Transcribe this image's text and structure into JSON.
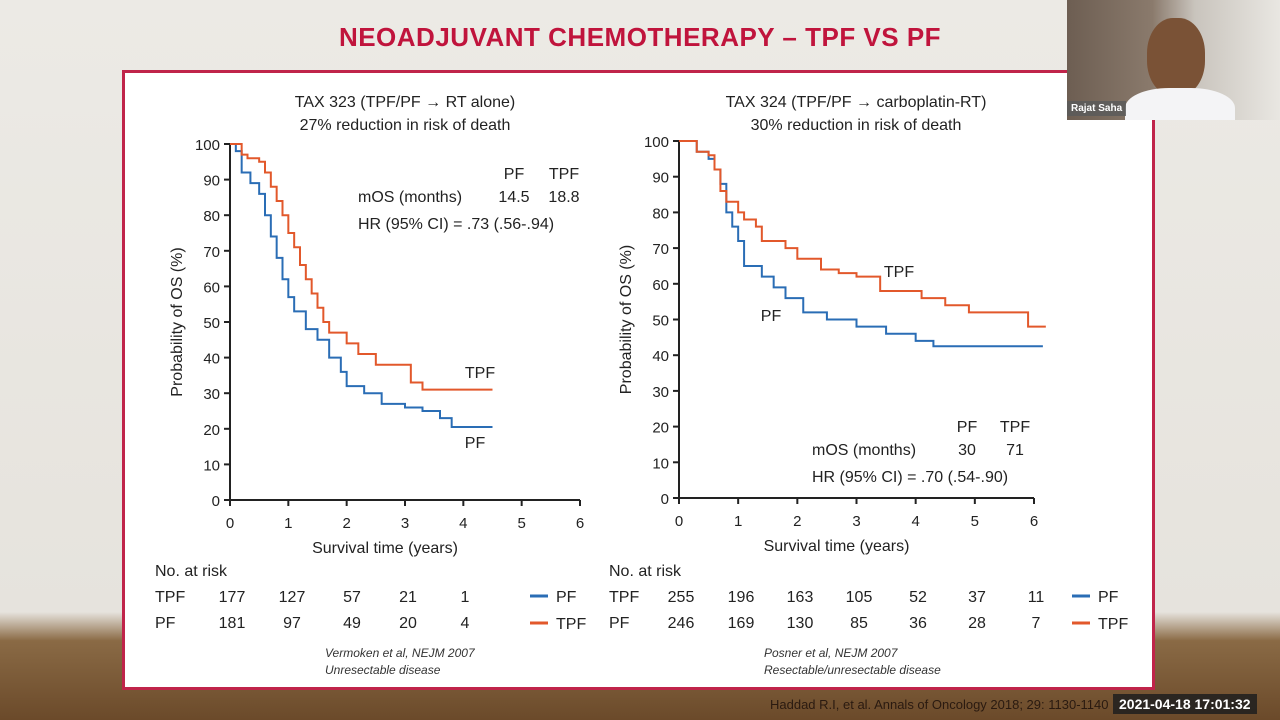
{
  "slide": {
    "title": "NEOADJUVANT CHEMOTHERAPY – TPF VS PF",
    "footer_citation": "Haddad R.I, et al. Annals of Oncology 2018; 29: 1130-1140"
  },
  "video": {
    "participant_name": "Rajat Saha",
    "timestamp": "2021-04-18 17:01:32"
  },
  "colors": {
    "PF": "#2a6db5",
    "TPF": "#e2582b",
    "accent": "#c0143c"
  },
  "chart_data": [
    {
      "type": "line",
      "title": "TAX 323 (TPF/PF → RT alone)",
      "subtitle": "27% reduction in risk of death",
      "xlabel": "Survival time (years)",
      "ylabel": "Probability of OS (%)",
      "xlim": [
        0,
        6
      ],
      "ylim": [
        0,
        100
      ],
      "xticks": [
        0,
        1,
        2,
        3,
        4,
        5,
        6
      ],
      "yticks": [
        0,
        10,
        20,
        30,
        40,
        50,
        60,
        70,
        80,
        90,
        100
      ],
      "grid": false,
      "stats": {
        "header": [
          "PF",
          "TPF"
        ],
        "mos_label": "mOS (months)",
        "mos": [
          "14.5",
          "18.8"
        ],
        "hr": "HR (95% CI) = .73 (.56-.94)"
      },
      "series": [
        {
          "name": "PF",
          "points": [
            [
              0,
              100
            ],
            [
              0.1,
              98
            ],
            [
              0.2,
              92
            ],
            [
              0.35,
              89
            ],
            [
              0.5,
              86
            ],
            [
              0.6,
              80
            ],
            [
              0.7,
              74
            ],
            [
              0.8,
              68
            ],
            [
              0.9,
              62
            ],
            [
              1.0,
              57
            ],
            [
              1.1,
              53
            ],
            [
              1.3,
              48
            ],
            [
              1.5,
              45
            ],
            [
              1.7,
              40
            ],
            [
              1.9,
              36
            ],
            [
              2.0,
              32
            ],
            [
              2.3,
              30
            ],
            [
              2.6,
              27
            ],
            [
              3.0,
              26
            ],
            [
              3.3,
              25
            ],
            [
              3.6,
              23
            ],
            [
              3.8,
              20.5
            ],
            [
              4.5,
              20.5
            ]
          ]
        },
        {
          "name": "TPF",
          "points": [
            [
              0,
              100
            ],
            [
              0.2,
              97
            ],
            [
              0.3,
              96
            ],
            [
              0.5,
              95
            ],
            [
              0.6,
              92
            ],
            [
              0.7,
              88
            ],
            [
              0.8,
              84
            ],
            [
              0.9,
              80
            ],
            [
              1.0,
              75
            ],
            [
              1.1,
              71
            ],
            [
              1.2,
              66
            ],
            [
              1.3,
              62
            ],
            [
              1.4,
              58
            ],
            [
              1.5,
              54
            ],
            [
              1.6,
              50
            ],
            [
              1.7,
              47
            ],
            [
              2.0,
              44
            ],
            [
              2.2,
              41
            ],
            [
              2.5,
              38
            ],
            [
              3.1,
              37
            ],
            [
              3.1,
              33
            ],
            [
              3.3,
              31
            ],
            [
              4.5,
              31
            ]
          ]
        }
      ],
      "risk_table": {
        "label": "No. at risk",
        "rows": [
          {
            "name": "TPF",
            "values": [
              "177",
              "127",
              "57",
              "21",
              "1"
            ]
          },
          {
            "name": "PF",
            "values": [
              "181",
              "97",
              "49",
              "20",
              "4"
            ]
          }
        ]
      },
      "legend": [
        {
          "name": "PF"
        },
        {
          "name": "TPF"
        }
      ],
      "source": [
        "Vermoken et al, NEJM 2007",
        "Unresectable disease"
      ]
    },
    {
      "type": "line",
      "title": "TAX 324 (TPF/PF → carboplatin-RT)",
      "subtitle": "30% reduction in risk of death",
      "xlabel": "Survival time (years)",
      "ylabel": "Probability of OS (%)",
      "xlim": [
        0,
        6
      ],
      "ylim": [
        0,
        100
      ],
      "xticks": [
        0,
        1,
        2,
        3,
        4,
        5,
        6
      ],
      "yticks": [
        0,
        10,
        20,
        30,
        40,
        50,
        60,
        70,
        80,
        90,
        100
      ],
      "grid": false,
      "stats": {
        "header": [
          "PF",
          "TPF"
        ],
        "mos_label": "mOS (months)",
        "mos": [
          "30",
          "71"
        ],
        "hr": "HR (95% CI) = .70 (.54-.90)"
      },
      "series": [
        {
          "name": "PF",
          "points": [
            [
              0,
              100
            ],
            [
              0.3,
              97
            ],
            [
              0.5,
              95
            ],
            [
              0.6,
              92
            ],
            [
              0.7,
              88
            ],
            [
              0.8,
              80
            ],
            [
              0.9,
              76
            ],
            [
              1.0,
              72
            ],
            [
              1.1,
              65
            ],
            [
              1.4,
              62
            ],
            [
              1.6,
              59
            ],
            [
              1.8,
              56
            ],
            [
              2.1,
              52
            ],
            [
              2.5,
              50
            ],
            [
              3.0,
              48
            ],
            [
              3.5,
              46
            ],
            [
              4.0,
              44
            ],
            [
              4.3,
              42.5
            ],
            [
              6.15,
              42.5
            ]
          ]
        },
        {
          "name": "TPF",
          "points": [
            [
              0,
              100
            ],
            [
              0.3,
              97
            ],
            [
              0.5,
              96
            ],
            [
              0.6,
              92
            ],
            [
              0.7,
              86
            ],
            [
              0.8,
              83
            ],
            [
              1.0,
              80
            ],
            [
              1.1,
              78
            ],
            [
              1.3,
              76
            ],
            [
              1.4,
              72
            ],
            [
              1.8,
              70
            ],
            [
              2.0,
              67
            ],
            [
              2.4,
              64
            ],
            [
              2.7,
              63
            ],
            [
              3.0,
              62
            ],
            [
              3.4,
              58
            ],
            [
              4.0,
              58
            ],
            [
              4.1,
              56
            ],
            [
              4.5,
              54
            ],
            [
              4.9,
              52
            ],
            [
              5.9,
              52
            ],
            [
              5.9,
              48
            ],
            [
              6.2,
              48
            ]
          ]
        }
      ],
      "risk_table": {
        "label": "No. at risk",
        "rows": [
          {
            "name": "TPF",
            "values": [
              "255",
              "196",
              "163",
              "105",
              "52",
              "37",
              "11"
            ]
          },
          {
            "name": "PF",
            "values": [
              "246",
              "169",
              "130",
              "85",
              "36",
              "28",
              "7"
            ]
          }
        ]
      },
      "legend": [
        {
          "name": "PF"
        },
        {
          "name": "TPF"
        }
      ],
      "source": [
        "Posner et al, NEJM 2007",
        "Resectable/unresectable disease"
      ]
    }
  ]
}
